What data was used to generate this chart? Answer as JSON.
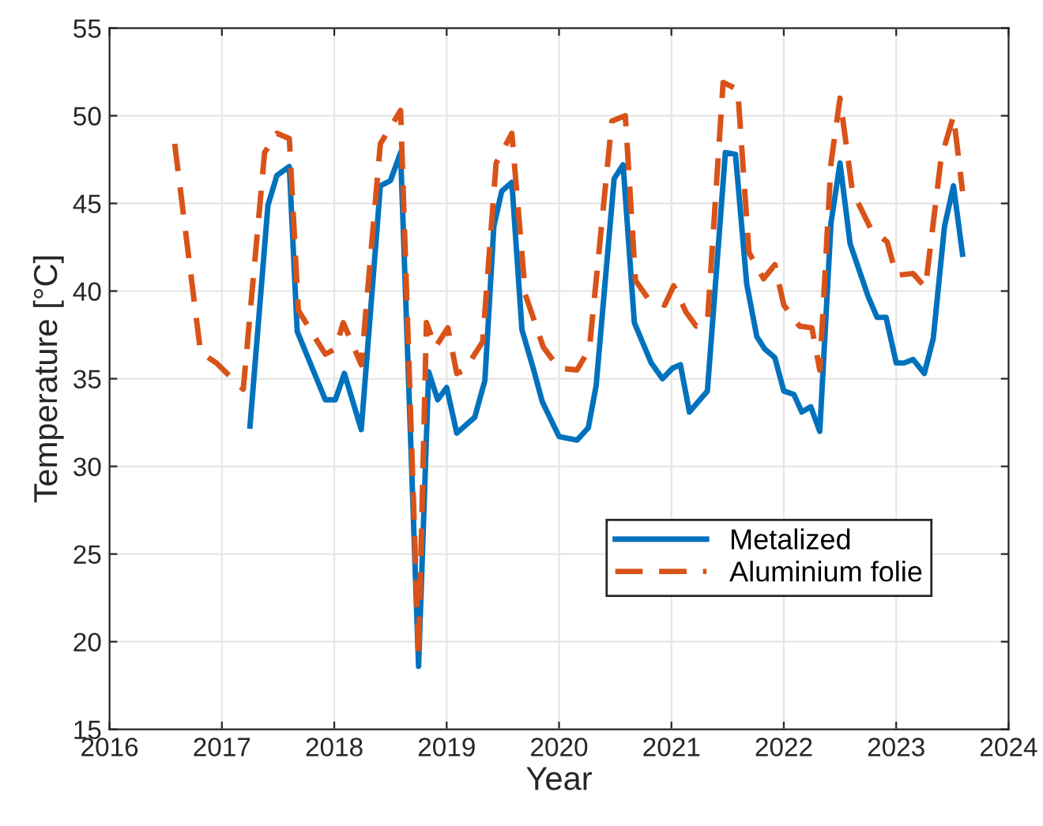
{
  "chart_data": {
    "type": "line",
    "xlabel": "Year",
    "ylabel": "Temperature [°C]",
    "xlim": [
      2016,
      2024
    ],
    "xticks": [
      2016,
      2017,
      2018,
      2019,
      2020,
      2021,
      2022,
      2023,
      2024
    ],
    "ylim": [
      15,
      55
    ],
    "yticks": [
      15,
      20,
      25,
      30,
      35,
      40,
      45,
      50,
      55
    ],
    "grid": true,
    "legend": "lower right",
    "series": [
      {
        "name": "Metalized",
        "color": "#0072bd",
        "line_style": "solid",
        "x": [
          2017.25,
          2017.41,
          2017.49,
          2017.6,
          2017.67,
          2017.92,
          2018.01,
          2018.09,
          2018.24,
          2018.41,
          2018.5,
          2018.59,
          2018.75,
          2018.84,
          2018.92,
          2019.0,
          2019.09,
          2019.25,
          2019.34,
          2019.42,
          2019.49,
          2019.58,
          2019.67,
          2019.77,
          2019.85,
          2020.0,
          2020.16,
          2020.26,
          2020.33,
          2020.49,
          2020.57,
          2020.67,
          2020.82,
          2020.92,
          2021.01,
          2021.08,
          2021.16,
          2021.32,
          2021.48,
          2021.57,
          2021.67,
          2021.76,
          2021.83,
          2021.92,
          2022.0,
          2022.09,
          2022.16,
          2022.24,
          2022.32,
          2022.42,
          2022.5,
          2022.59,
          2022.75,
          2022.83,
          2022.91,
          2023.0,
          2023.07,
          2023.15,
          2023.25,
          2023.33,
          2023.43,
          2023.51,
          2023.59
        ],
        "values": [
          32.3,
          44.9,
          46.6,
          47.1,
          37.7,
          33.8,
          33.8,
          35.3,
          32.1,
          46.0,
          46.3,
          47.9,
          18.6,
          35.4,
          33.8,
          34.5,
          31.9,
          32.8,
          34.9,
          43.7,
          45.7,
          46.2,
          37.8,
          35.6,
          33.7,
          31.7,
          31.5,
          32.2,
          34.6,
          46.4,
          47.2,
          38.2,
          35.9,
          35.0,
          35.6,
          35.8,
          33.1,
          34.3,
          47.9,
          47.8,
          40.4,
          37.4,
          36.7,
          36.2,
          34.3,
          34.1,
          33.1,
          33.4,
          32.0,
          43.9,
          47.3,
          42.7,
          39.7,
          38.5,
          38.5,
          35.9,
          35.9,
          36.1,
          35.3,
          37.3,
          43.7,
          46.0,
          42.1
        ]
      },
      {
        "name": "Aluminium folie",
        "color": "#d95319",
        "line_style": "dashed",
        "x": [
          2016.58,
          2016.81,
          2016.95,
          2017.19,
          2017.38,
          2017.49,
          2017.6,
          2017.68,
          2017.92,
          2018.01,
          2018.08,
          2018.24,
          2018.41,
          2018.59,
          2018.75,
          2018.82,
          2018.9,
          2019.01,
          2019.09,
          2019.16,
          2019.32,
          2019.44,
          2019.58,
          2019.7,
          2019.86,
          2020.0,
          2020.16,
          2020.27,
          2020.47,
          2020.59,
          2020.68,
          2020.8,
          2020.94,
          2021.02,
          2021.13,
          2021.22,
          2021.32,
          2021.46,
          2021.59,
          2021.69,
          2021.82,
          2021.92,
          2022.0,
          2022.14,
          2022.25,
          2022.32,
          2022.42,
          2022.5,
          2022.61,
          2022.77,
          2022.92,
          2023.0,
          2023.15,
          2023.26,
          2023.4,
          2023.51,
          2023.59
        ],
        "values": [
          48.4,
          36.5,
          35.9,
          34.4,
          47.9,
          49.0,
          48.7,
          38.9,
          36.4,
          36.7,
          38.2,
          35.8,
          48.4,
          50.3,
          19.2,
          38.2,
          36.8,
          37.9,
          35.3,
          35.5,
          37.1,
          47.3,
          49.0,
          39.8,
          36.8,
          35.6,
          35.5,
          36.7,
          49.7,
          50.0,
          40.6,
          39.5,
          39.2,
          40.3,
          38.8,
          38.0,
          38.2,
          51.9,
          51.5,
          42.2,
          40.7,
          41.5,
          39.2,
          38.0,
          37.9,
          35.5,
          47.3,
          51.0,
          45.7,
          43.6,
          42.8,
          40.9,
          41.0,
          40.2,
          47.6,
          50.0,
          45.7
        ]
      }
    ]
  }
}
